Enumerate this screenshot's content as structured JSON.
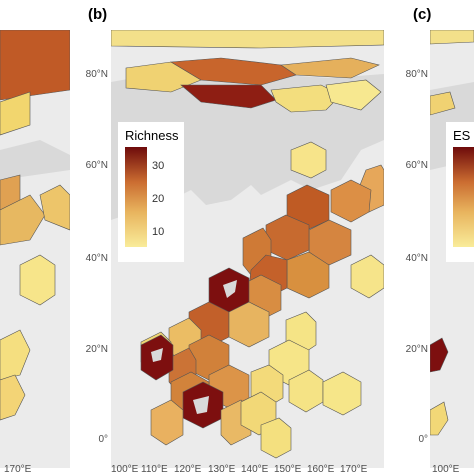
{
  "panels": [
    {
      "label": "(b)"
    },
    {
      "label": "(c)"
    }
  ],
  "left_axis_b": {
    "lat_labels": [
      "80°N",
      "60°N",
      "40°N",
      "20°N",
      "0°"
    ]
  },
  "left_axis_c": {
    "lat_labels": [
      "80°N",
      "60°N",
      "40°N",
      "20°N",
      "0°"
    ]
  },
  "bottom_axis_a": {
    "lon_labels": [
      "170°E"
    ]
  },
  "bottom_axis_b": {
    "lon_labels": [
      "100°E",
      "110°E",
      "120°E",
      "130°E",
      "140°E",
      "150°E",
      "160°E",
      "170°E"
    ]
  },
  "bottom_axis_c": {
    "lon_labels": [
      "100°E"
    ]
  },
  "legend_b": {
    "title": "Richness",
    "ticks": [
      "30",
      "20",
      "10"
    ],
    "scale_min": 5,
    "scale_max": 35
  },
  "legend_c": {
    "title": "ES"
  },
  "colors": {
    "background": "#ebebeb",
    "land": "#d9d9d9",
    "low": "#f5e68c",
    "mid": "#d88a3c",
    "high": "#7a0e0e"
  }
}
